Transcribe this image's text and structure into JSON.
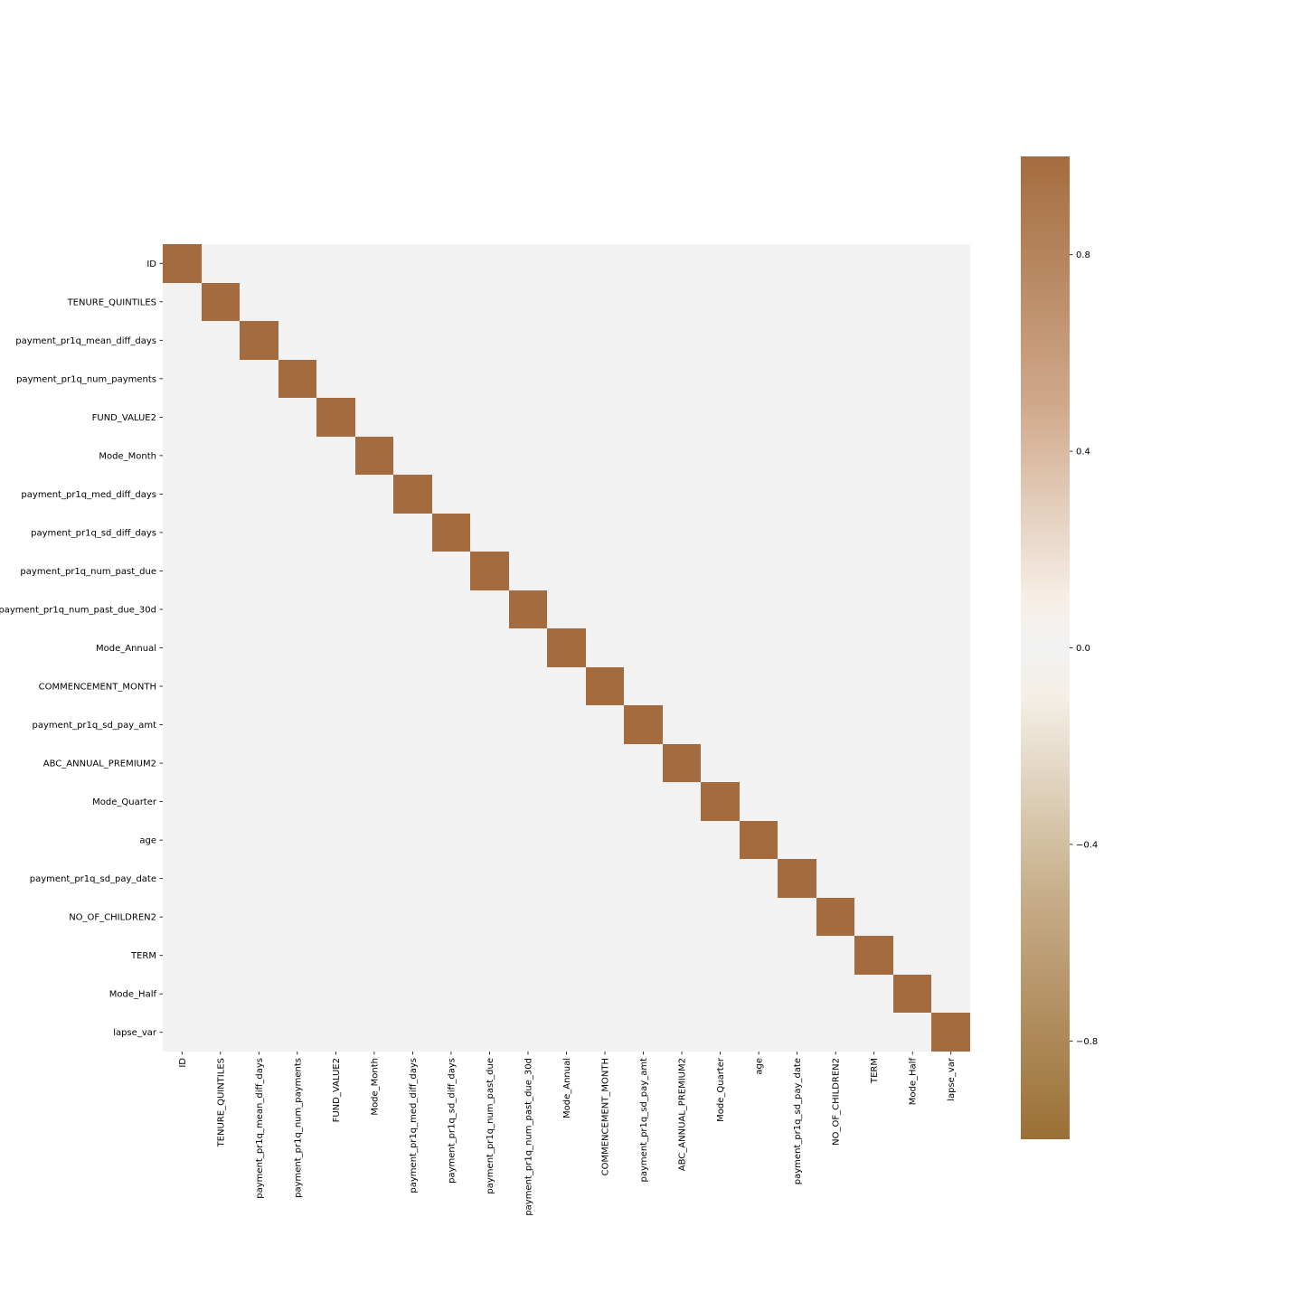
{
  "chart_data": {
    "type": "heatmap",
    "title": "",
    "xlabel": "",
    "ylabel": "",
    "categories": [
      "ID",
      "TENURE_QUINTILES",
      "payment_pr1q_mean_diff_days",
      "payment_pr1q_num_payments",
      "FUND_VALUE2",
      "Mode_Month",
      "payment_pr1q_med_diff_days",
      "payment_pr1q_sd_diff_days",
      "payment_pr1q_num_past_due",
      "payment_pr1q_num_past_due_30d",
      "Mode_Annual",
      "COMMENCEMENT_MONTH",
      "payment_pr1q_sd_pay_amt",
      "ABC_ANNUAL_PREMIUM2",
      "Mode_Quarter",
      "age",
      "payment_pr1q_sd_pay_date",
      "NO_OF_CHILDREN2",
      "TERM",
      "Mode_Half",
      "lapse_var"
    ],
    "values": "identity: diagonal cells = 1.0, all off-diagonal cells ≈ 0.0",
    "diagonal_value": 1.0,
    "off_diagonal_value": 0.0,
    "colorbar": {
      "range": [
        -1.0,
        1.0
      ],
      "ticks": [
        0.8,
        0.4,
        0.0,
        -0.4,
        -0.8
      ],
      "tick_labels": [
        "0.8",
        "0.4",
        "0.0",
        "−0.4",
        "−0.8"
      ],
      "colormap_stops": [
        {
          "value": -1.0,
          "color": "#9b7036"
        },
        {
          "value": -0.5,
          "color": "#c7ae8a"
        },
        {
          "value": -0.1,
          "color": "#f4efe6"
        },
        {
          "value": 0.0,
          "color": "#f2f2f2"
        },
        {
          "value": 0.1,
          "color": "#f6eee6"
        },
        {
          "value": 0.5,
          "color": "#cfa88a"
        },
        {
          "value": 1.0,
          "color": "#a46c3e"
        }
      ]
    },
    "colors": {
      "high": "#a46c3e",
      "zero": "#f2f2f2"
    },
    "grid": false,
    "legend": "colorbar-right"
  }
}
